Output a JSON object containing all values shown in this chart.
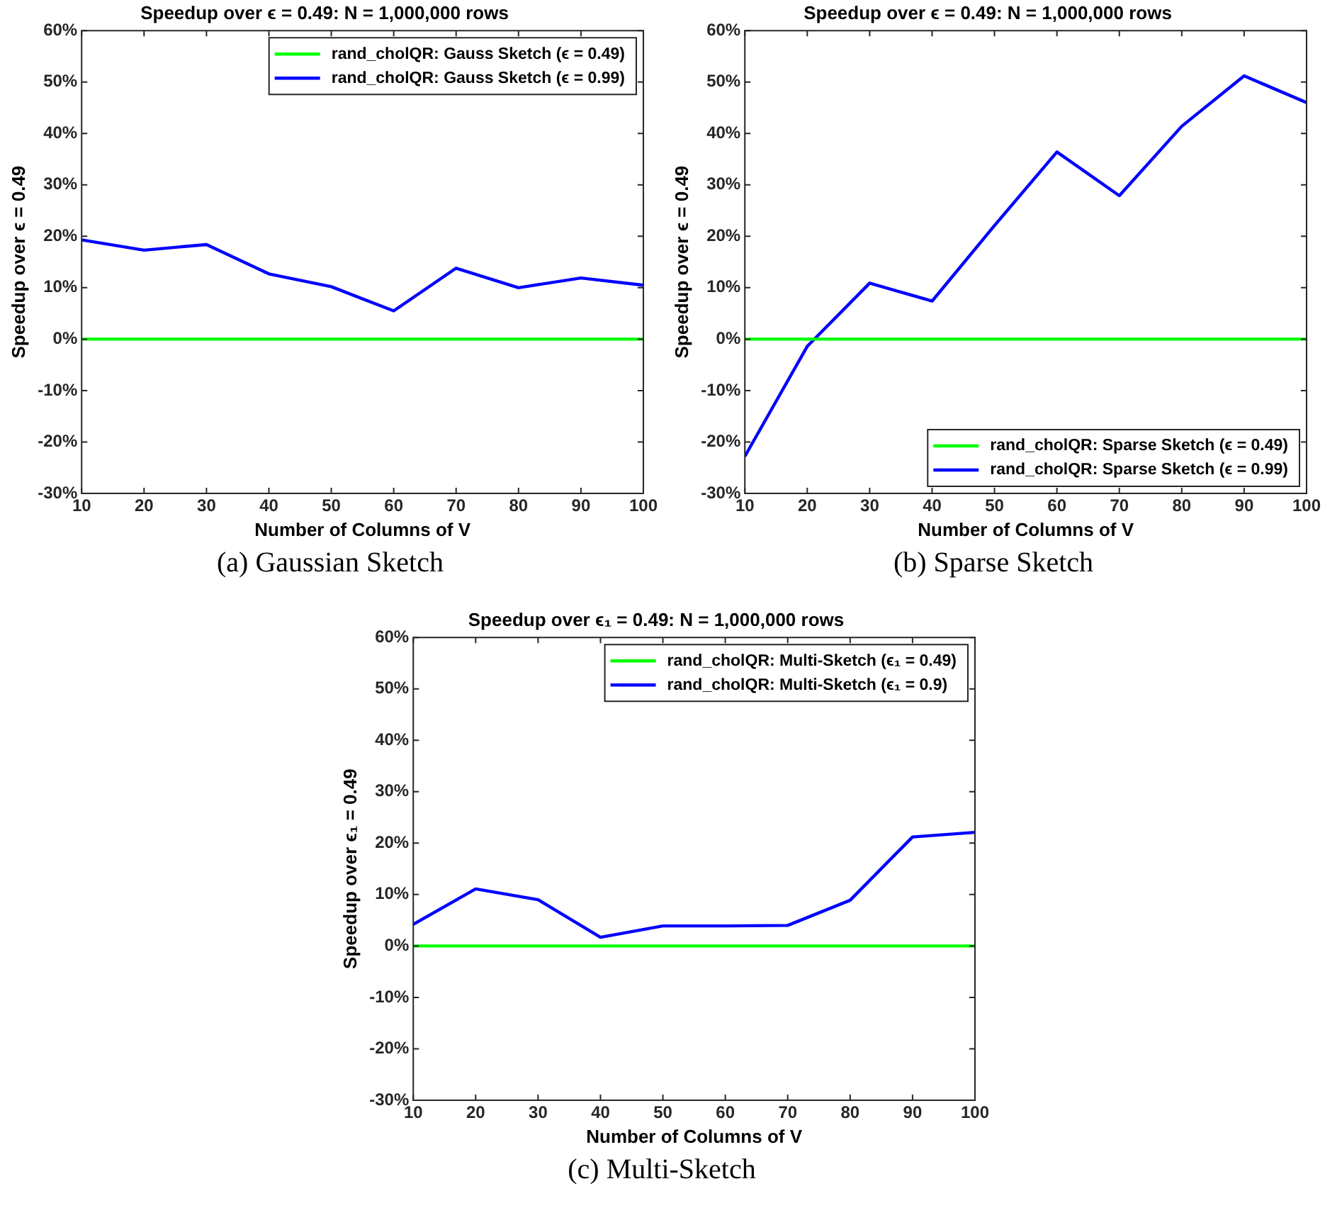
{
  "chart_data": [
    {
      "type": "line",
      "title": "Speedup over ϵ = 0.49: N = 1,000,000 rows",
      "xlabel": "Number of Columns of V",
      "ylabel": "Speedup over ϵ = 0.49",
      "x": [
        10,
        20,
        30,
        40,
        50,
        60,
        70,
        80,
        90,
        100
      ],
      "xlim": [
        10,
        100
      ],
      "xticks": [
        10,
        20,
        30,
        40,
        50,
        60,
        70,
        80,
        90,
        100
      ],
      "ylim": [
        -30,
        60
      ],
      "yticks": [
        {
          "value": -30,
          "label": "-30%"
        },
        {
          "value": -20,
          "label": "-20%"
        },
        {
          "value": -10,
          "label": "-10%"
        },
        {
          "value": 0,
          "label": "0%"
        },
        {
          "value": 10,
          "label": "10%"
        },
        {
          "value": 20,
          "label": "20%"
        },
        {
          "value": 30,
          "label": "30%"
        },
        {
          "value": 40,
          "label": "40%"
        },
        {
          "value": 50,
          "label": "50%"
        },
        {
          "value": 60,
          "label": "60%"
        }
      ],
      "grid": false,
      "legend": "top right",
      "annotations": [
        "(a) Gaussian Sketch"
      ],
      "series": [
        {
          "name": "rand_cholQR: Gauss Sketch (ϵ = 0.49)",
          "color": "#00ff00",
          "values": [
            0,
            0,
            0,
            0,
            0,
            0,
            0,
            0,
            0,
            0
          ]
        },
        {
          "name": "rand_cholQR: Gauss Sketch (ϵ = 0.99)",
          "color": "#0000ff",
          "values": [
            19.3,
            17.3,
            18.4,
            12.7,
            10.2,
            5.5,
            13.8,
            10.0,
            11.9,
            10.5
          ]
        }
      ]
    },
    {
      "type": "line",
      "title": "Speedup over ϵ = 0.49: N = 1,000,000 rows",
      "xlabel": "Number of Columns of V",
      "ylabel": "Speedup over ϵ = 0.49",
      "x": [
        10,
        20,
        30,
        40,
        50,
        60,
        70,
        80,
        90,
        100
      ],
      "xlim": [
        10,
        100
      ],
      "xticks": [
        10,
        20,
        30,
        40,
        50,
        60,
        70,
        80,
        90,
        100
      ],
      "ylim": [
        -30,
        60
      ],
      "yticks": [
        {
          "value": -30,
          "label": "-30%"
        },
        {
          "value": -20,
          "label": "-20%"
        },
        {
          "value": -10,
          "label": "-10%"
        },
        {
          "value": 0,
          "label": "0%"
        },
        {
          "value": 10,
          "label": "10%"
        },
        {
          "value": 20,
          "label": "20%"
        },
        {
          "value": 30,
          "label": "30%"
        },
        {
          "value": 40,
          "label": "40%"
        },
        {
          "value": 50,
          "label": "50%"
        },
        {
          "value": 60,
          "label": "60%"
        }
      ],
      "grid": false,
      "legend": "bottom right",
      "annotations": [
        "(b) Sparse Sketch"
      ],
      "series": [
        {
          "name": "rand_cholQR: Sparse Sketch (ϵ = 0.49)",
          "color": "#00ff00",
          "values": [
            0,
            0,
            0,
            0,
            0,
            0,
            0,
            0,
            0,
            0
          ]
        },
        {
          "name": "rand_cholQR: Sparse Sketch (ϵ = 0.99)",
          "color": "#0000ff",
          "values": [
            -22.8,
            -1.4,
            10.9,
            7.4,
            22.1,
            36.4,
            27.9,
            41.4,
            51.2,
            46.0
          ]
        }
      ]
    },
    {
      "type": "line",
      "title": "Speedup over ϵ₁ = 0.49: N = 1,000,000 rows",
      "xlabel": "Number of Columns of V",
      "ylabel": "Speedup over ϵ₁ = 0.49",
      "x": [
        10,
        20,
        30,
        40,
        50,
        60,
        70,
        80,
        90,
        100
      ],
      "xlim": [
        10,
        100
      ],
      "xticks": [
        10,
        20,
        30,
        40,
        50,
        60,
        70,
        80,
        90,
        100
      ],
      "ylim": [
        -30,
        60
      ],
      "yticks": [
        {
          "value": -30,
          "label": "-30%"
        },
        {
          "value": -20,
          "label": "-20%"
        },
        {
          "value": -10,
          "label": "-10%"
        },
        {
          "value": 0,
          "label": "0%"
        },
        {
          "value": 10,
          "label": "10%"
        },
        {
          "value": 20,
          "label": "20%"
        },
        {
          "value": 30,
          "label": "30%"
        },
        {
          "value": 40,
          "label": "40%"
        },
        {
          "value": 50,
          "label": "50%"
        },
        {
          "value": 60,
          "label": "60%"
        }
      ],
      "grid": false,
      "legend": "top right",
      "annotations": [
        "(c) Multi-Sketch"
      ],
      "series": [
        {
          "name": "rand_cholQR: Multi-Sketch (ϵ₁ = 0.49)",
          "color": "#00ff00",
          "values": [
            0,
            0,
            0,
            0,
            0,
            0,
            0,
            0,
            0,
            0
          ]
        },
        {
          "name": "rand_cholQR: Multi-Sketch (ϵ₁ = 0.9)",
          "color": "#0000ff",
          "values": [
            4.2,
            11.1,
            9.0,
            1.7,
            3.9,
            3.9,
            4.0,
            8.9,
            21.2,
            22.1
          ]
        }
      ]
    }
  ]
}
